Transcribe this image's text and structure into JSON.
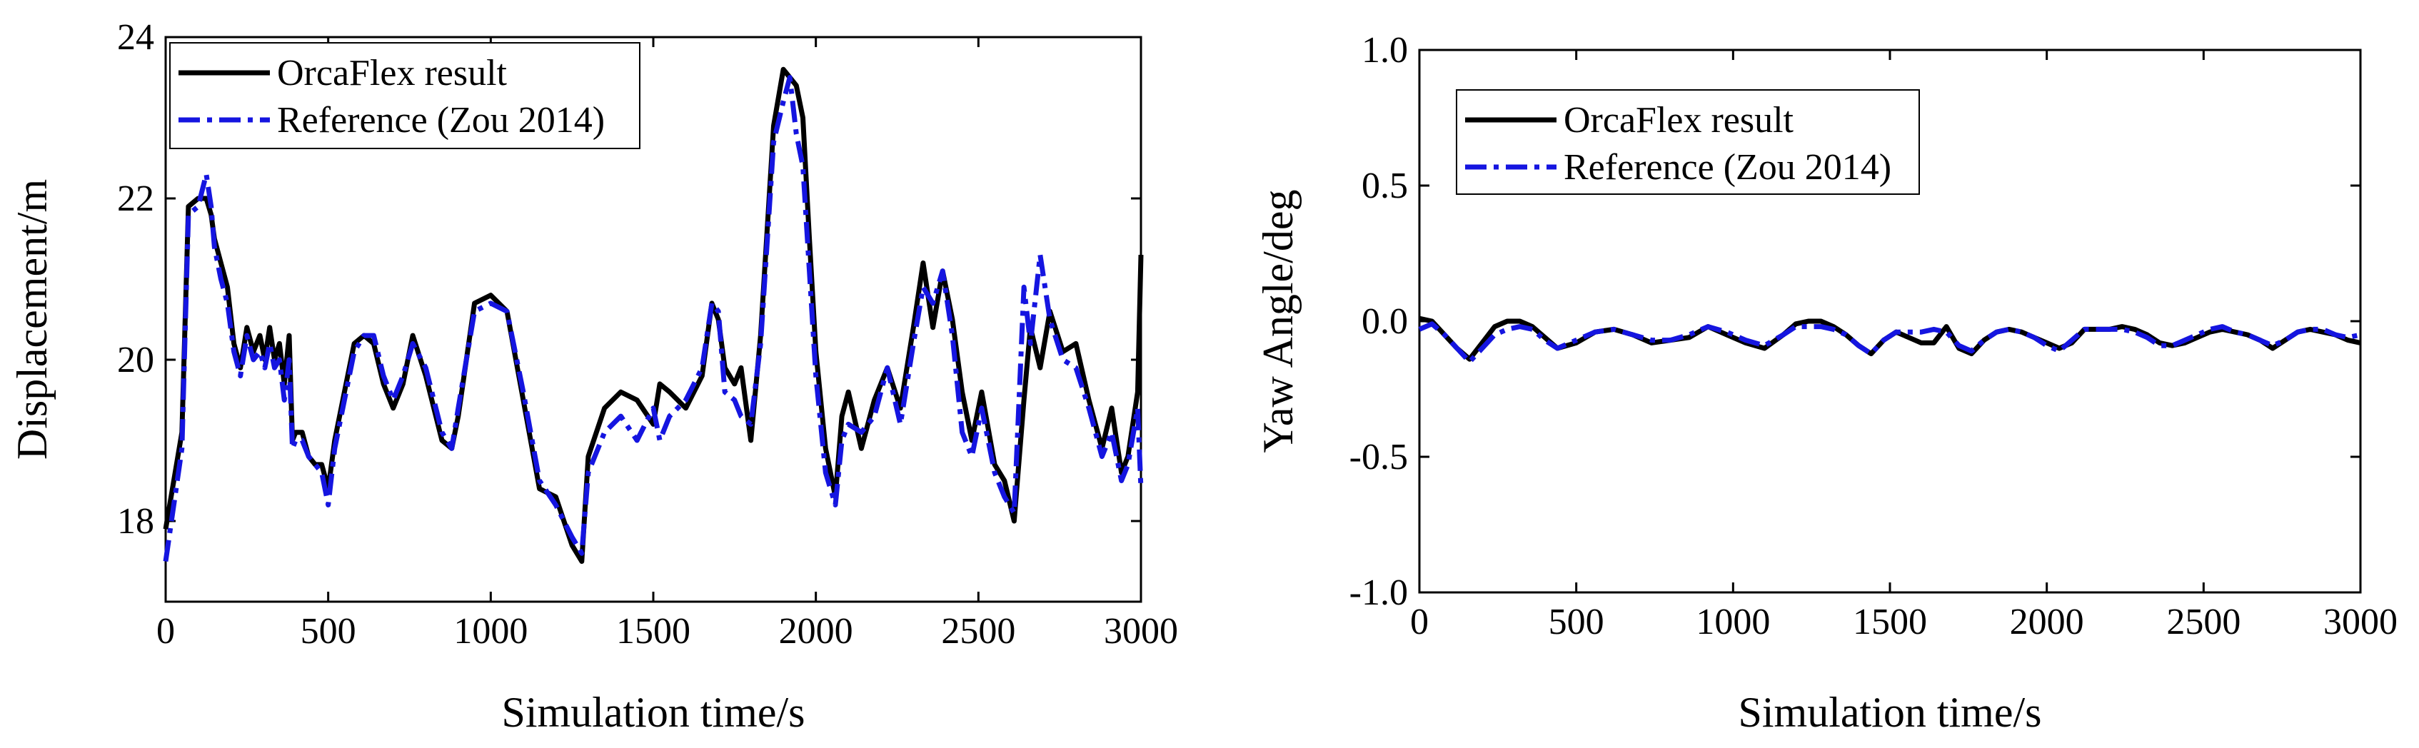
{
  "chart_data": [
    {
      "type": "line",
      "xlabel": "Simulation time/s",
      "ylabel": "Displacement/m",
      "xlim": [
        0,
        3000
      ],
      "ylim": [
        17,
        24
      ],
      "xticks": [
        0,
        500,
        1000,
        1500,
        2000,
        2500,
        3000
      ],
      "xtick_labels": [
        "0",
        "500",
        "1000",
        "1500",
        "2000",
        "2500",
        "3000"
      ],
      "yticks": [
        18,
        20,
        22,
        24
      ],
      "ytick_labels": [
        "18",
        "20",
        "22",
        "24"
      ],
      "legend_position": "top-left",
      "series": [
        {
          "name": "OrcaFlex result",
          "color": "#000000",
          "style": "solid",
          "x": [
            0,
            50,
            70,
            100,
            125,
            140,
            150,
            170,
            190,
            210,
            230,
            250,
            270,
            290,
            305,
            320,
            335,
            350,
            365,
            380,
            390,
            400,
            420,
            440,
            460,
            480,
            500,
            520,
            550,
            580,
            610,
            640,
            670,
            700,
            730,
            760,
            800,
            850,
            880,
            900,
            950,
            1000,
            1050,
            1100,
            1150,
            1200,
            1250,
            1280,
            1300,
            1350,
            1400,
            1450,
            1500,
            1520,
            1550,
            1600,
            1650,
            1680,
            1700,
            1720,
            1750,
            1770,
            1800,
            1830,
            1870,
            1900,
            1920,
            1940,
            1960,
            1980,
            2000,
            2030,
            2060,
            2080,
            2100,
            2140,
            2180,
            2220,
            2260,
            2300,
            2330,
            2360,
            2390,
            2420,
            2450,
            2480,
            2510,
            2550,
            2580,
            2610,
            2640,
            2660,
            2690,
            2720,
            2760,
            2800,
            2840,
            2880,
            2910,
            2940,
            2960,
            2990,
            3000
          ],
          "y": [
            17.9,
            19.1,
            21.9,
            22.0,
            22.0,
            21.8,
            21.5,
            21.2,
            20.9,
            20.2,
            19.9,
            20.4,
            20.1,
            20.3,
            20.0,
            20.4,
            20.0,
            20.2,
            19.7,
            20.3,
            19.0,
            19.1,
            19.1,
            18.8,
            18.7,
            18.7,
            18.4,
            19.0,
            19.6,
            20.2,
            20.3,
            20.2,
            19.7,
            19.4,
            19.7,
            20.3,
            19.8,
            19.0,
            18.9,
            19.3,
            20.7,
            20.8,
            20.6,
            19.5,
            18.4,
            18.3,
            17.7,
            17.5,
            18.8,
            19.4,
            19.6,
            19.5,
            19.2,
            19.7,
            19.6,
            19.4,
            19.8,
            20.7,
            20.5,
            19.9,
            19.7,
            19.9,
            19.0,
            20.3,
            22.9,
            23.6,
            23.5,
            23.4,
            23.0,
            21.5,
            20.1,
            18.9,
            18.3,
            19.3,
            19.6,
            18.9,
            19.5,
            19.9,
            19.4,
            20.4,
            21.2,
            20.4,
            21.1,
            20.5,
            19.6,
            19.0,
            19.6,
            18.7,
            18.5,
            18.0,
            19.5,
            20.4,
            19.9,
            20.6,
            20.1,
            20.2,
            19.5,
            18.9,
            19.4,
            18.6,
            18.8,
            19.6,
            21.3
          ]
        },
        {
          "name": "Reference (Zou 2014)",
          "color": "#1515e0",
          "style": "dash-dot",
          "x": [
            0,
            50,
            70,
            100,
            125,
            140,
            150,
            170,
            190,
            210,
            230,
            250,
            270,
            290,
            305,
            320,
            335,
            350,
            365,
            380,
            390,
            400,
            420,
            440,
            460,
            480,
            500,
            520,
            550,
            580,
            610,
            640,
            670,
            700,
            730,
            760,
            800,
            850,
            880,
            900,
            950,
            1000,
            1050,
            1100,
            1150,
            1200,
            1250,
            1280,
            1300,
            1350,
            1400,
            1450,
            1500,
            1520,
            1550,
            1600,
            1650,
            1680,
            1700,
            1720,
            1750,
            1770,
            1800,
            1830,
            1870,
            1900,
            1920,
            1940,
            1960,
            1980,
            2000,
            2030,
            2060,
            2080,
            2100,
            2140,
            2180,
            2220,
            2260,
            2300,
            2330,
            2360,
            2390,
            2420,
            2450,
            2480,
            2510,
            2550,
            2580,
            2610,
            2640,
            2660,
            2690,
            2720,
            2760,
            2800,
            2840,
            2880,
            2910,
            2940,
            2960,
            2990,
            3000
          ],
          "y": [
            17.5,
            18.9,
            21.8,
            21.9,
            22.3,
            21.9,
            21.4,
            21.0,
            20.7,
            20.1,
            19.8,
            20.3,
            20.0,
            20.1,
            19.9,
            20.2,
            19.9,
            20.0,
            19.5,
            20.0,
            18.9,
            19.0,
            19.0,
            18.8,
            18.7,
            18.6,
            18.2,
            18.9,
            19.5,
            20.1,
            20.3,
            20.3,
            19.8,
            19.5,
            19.8,
            20.2,
            19.9,
            19.1,
            18.9,
            19.4,
            20.6,
            20.7,
            20.6,
            19.6,
            18.5,
            18.2,
            17.8,
            17.6,
            18.6,
            19.1,
            19.3,
            19.0,
            19.4,
            19.0,
            19.3,
            19.5,
            19.9,
            20.7,
            20.6,
            19.6,
            19.5,
            19.3,
            19.2,
            20.2,
            22.7,
            23.2,
            23.5,
            22.8,
            22.4,
            21.1,
            19.8,
            18.6,
            18.2,
            19.0,
            19.2,
            19.1,
            19.3,
            19.9,
            19.2,
            20.2,
            20.9,
            20.7,
            21.1,
            20.3,
            19.1,
            18.8,
            19.4,
            18.6,
            18.3,
            18.1,
            20.9,
            20.2,
            21.3,
            20.5,
            20.0,
            19.9,
            19.4,
            18.8,
            19.1,
            18.5,
            18.7,
            19.4,
            18.4
          ]
        }
      ]
    },
    {
      "type": "line",
      "xlabel": "Simulation time/s",
      "ylabel": "Yaw Angle/deg",
      "xlim": [
        0,
        3000
      ],
      "ylim": [
        -1.0,
        1.0
      ],
      "xticks": [
        0,
        500,
        1000,
        1500,
        2000,
        2500,
        3000
      ],
      "xtick_labels": [
        "0",
        "500",
        "1000",
        "1500",
        "2000",
        "2500",
        "3000"
      ],
      "yticks": [
        -1.0,
        -0.5,
        0.0,
        0.5,
        1.0
      ],
      "ytick_labels": [
        "-1.0",
        "-0.5",
        "0.0",
        "0.5",
        "1.0"
      ],
      "legend_position": "top-left",
      "series": [
        {
          "name": "OrcaFlex result",
          "color": "#000000",
          "style": "solid",
          "x": [
            0,
            40,
            80,
            120,
            160,
            200,
            240,
            280,
            320,
            360,
            400,
            440,
            500,
            560,
            620,
            680,
            740,
            800,
            860,
            920,
            980,
            1040,
            1100,
            1160,
            1200,
            1240,
            1280,
            1320,
            1360,
            1400,
            1440,
            1480,
            1520,
            1560,
            1600,
            1640,
            1680,
            1720,
            1760,
            1800,
            1840,
            1880,
            1920,
            1960,
            2000,
            2040,
            2080,
            2120,
            2160,
            2200,
            2240,
            2280,
            2320,
            2360,
            2400,
            2440,
            2480,
            2520,
            2560,
            2600,
            2640,
            2680,
            2720,
            2760,
            2800,
            2840,
            2880,
            2920,
            2960,
            3000
          ],
          "y": [
            0.01,
            0.0,
            -0.05,
            -0.1,
            -0.14,
            -0.08,
            -0.02,
            0.0,
            0.0,
            -0.02,
            -0.06,
            -0.1,
            -0.08,
            -0.04,
            -0.03,
            -0.05,
            -0.08,
            -0.07,
            -0.06,
            -0.02,
            -0.05,
            -0.08,
            -0.1,
            -0.05,
            -0.01,
            0.0,
            0.0,
            -0.02,
            -0.05,
            -0.09,
            -0.12,
            -0.07,
            -0.04,
            -0.06,
            -0.08,
            -0.08,
            -0.02,
            -0.1,
            -0.12,
            -0.07,
            -0.04,
            -0.03,
            -0.04,
            -0.06,
            -0.08,
            -0.1,
            -0.08,
            -0.03,
            -0.03,
            -0.03,
            -0.02,
            -0.03,
            -0.05,
            -0.08,
            -0.09,
            -0.08,
            -0.06,
            -0.04,
            -0.03,
            -0.04,
            -0.05,
            -0.07,
            -0.1,
            -0.07,
            -0.04,
            -0.03,
            -0.04,
            -0.05,
            -0.07,
            -0.08
          ]
        },
        {
          "name": "Reference (Zou 2014)",
          "color": "#1515e0",
          "style": "dash-dot",
          "x": [
            0,
            40,
            80,
            120,
            160,
            200,
            240,
            280,
            320,
            360,
            400,
            440,
            500,
            560,
            620,
            680,
            740,
            800,
            860,
            920,
            980,
            1040,
            1100,
            1160,
            1200,
            1240,
            1280,
            1320,
            1360,
            1400,
            1440,
            1480,
            1520,
            1560,
            1600,
            1640,
            1680,
            1720,
            1760,
            1800,
            1840,
            1880,
            1920,
            1960,
            2000,
            2040,
            2080,
            2120,
            2160,
            2200,
            2240,
            2280,
            2320,
            2360,
            2400,
            2440,
            2480,
            2520,
            2560,
            2600,
            2640,
            2680,
            2720,
            2760,
            2800,
            2840,
            2880,
            2920,
            2960,
            3000
          ],
          "y": [
            -0.03,
            -0.01,
            -0.05,
            -0.1,
            -0.15,
            -0.1,
            -0.05,
            -0.03,
            -0.02,
            -0.03,
            -0.07,
            -0.1,
            -0.07,
            -0.04,
            -0.03,
            -0.05,
            -0.07,
            -0.07,
            -0.05,
            -0.02,
            -0.04,
            -0.07,
            -0.09,
            -0.05,
            -0.02,
            -0.02,
            -0.02,
            -0.03,
            -0.05,
            -0.09,
            -0.12,
            -0.07,
            -0.04,
            -0.04,
            -0.04,
            -0.03,
            -0.04,
            -0.09,
            -0.11,
            -0.07,
            -0.04,
            -0.03,
            -0.04,
            -0.06,
            -0.09,
            -0.11,
            -0.07,
            -0.03,
            -0.03,
            -0.03,
            -0.03,
            -0.04,
            -0.06,
            -0.09,
            -0.09,
            -0.07,
            -0.05,
            -0.03,
            -0.02,
            -0.04,
            -0.05,
            -0.07,
            -0.09,
            -0.07,
            -0.04,
            -0.03,
            -0.03,
            -0.05,
            -0.06,
            -0.05
          ]
        }
      ]
    }
  ]
}
